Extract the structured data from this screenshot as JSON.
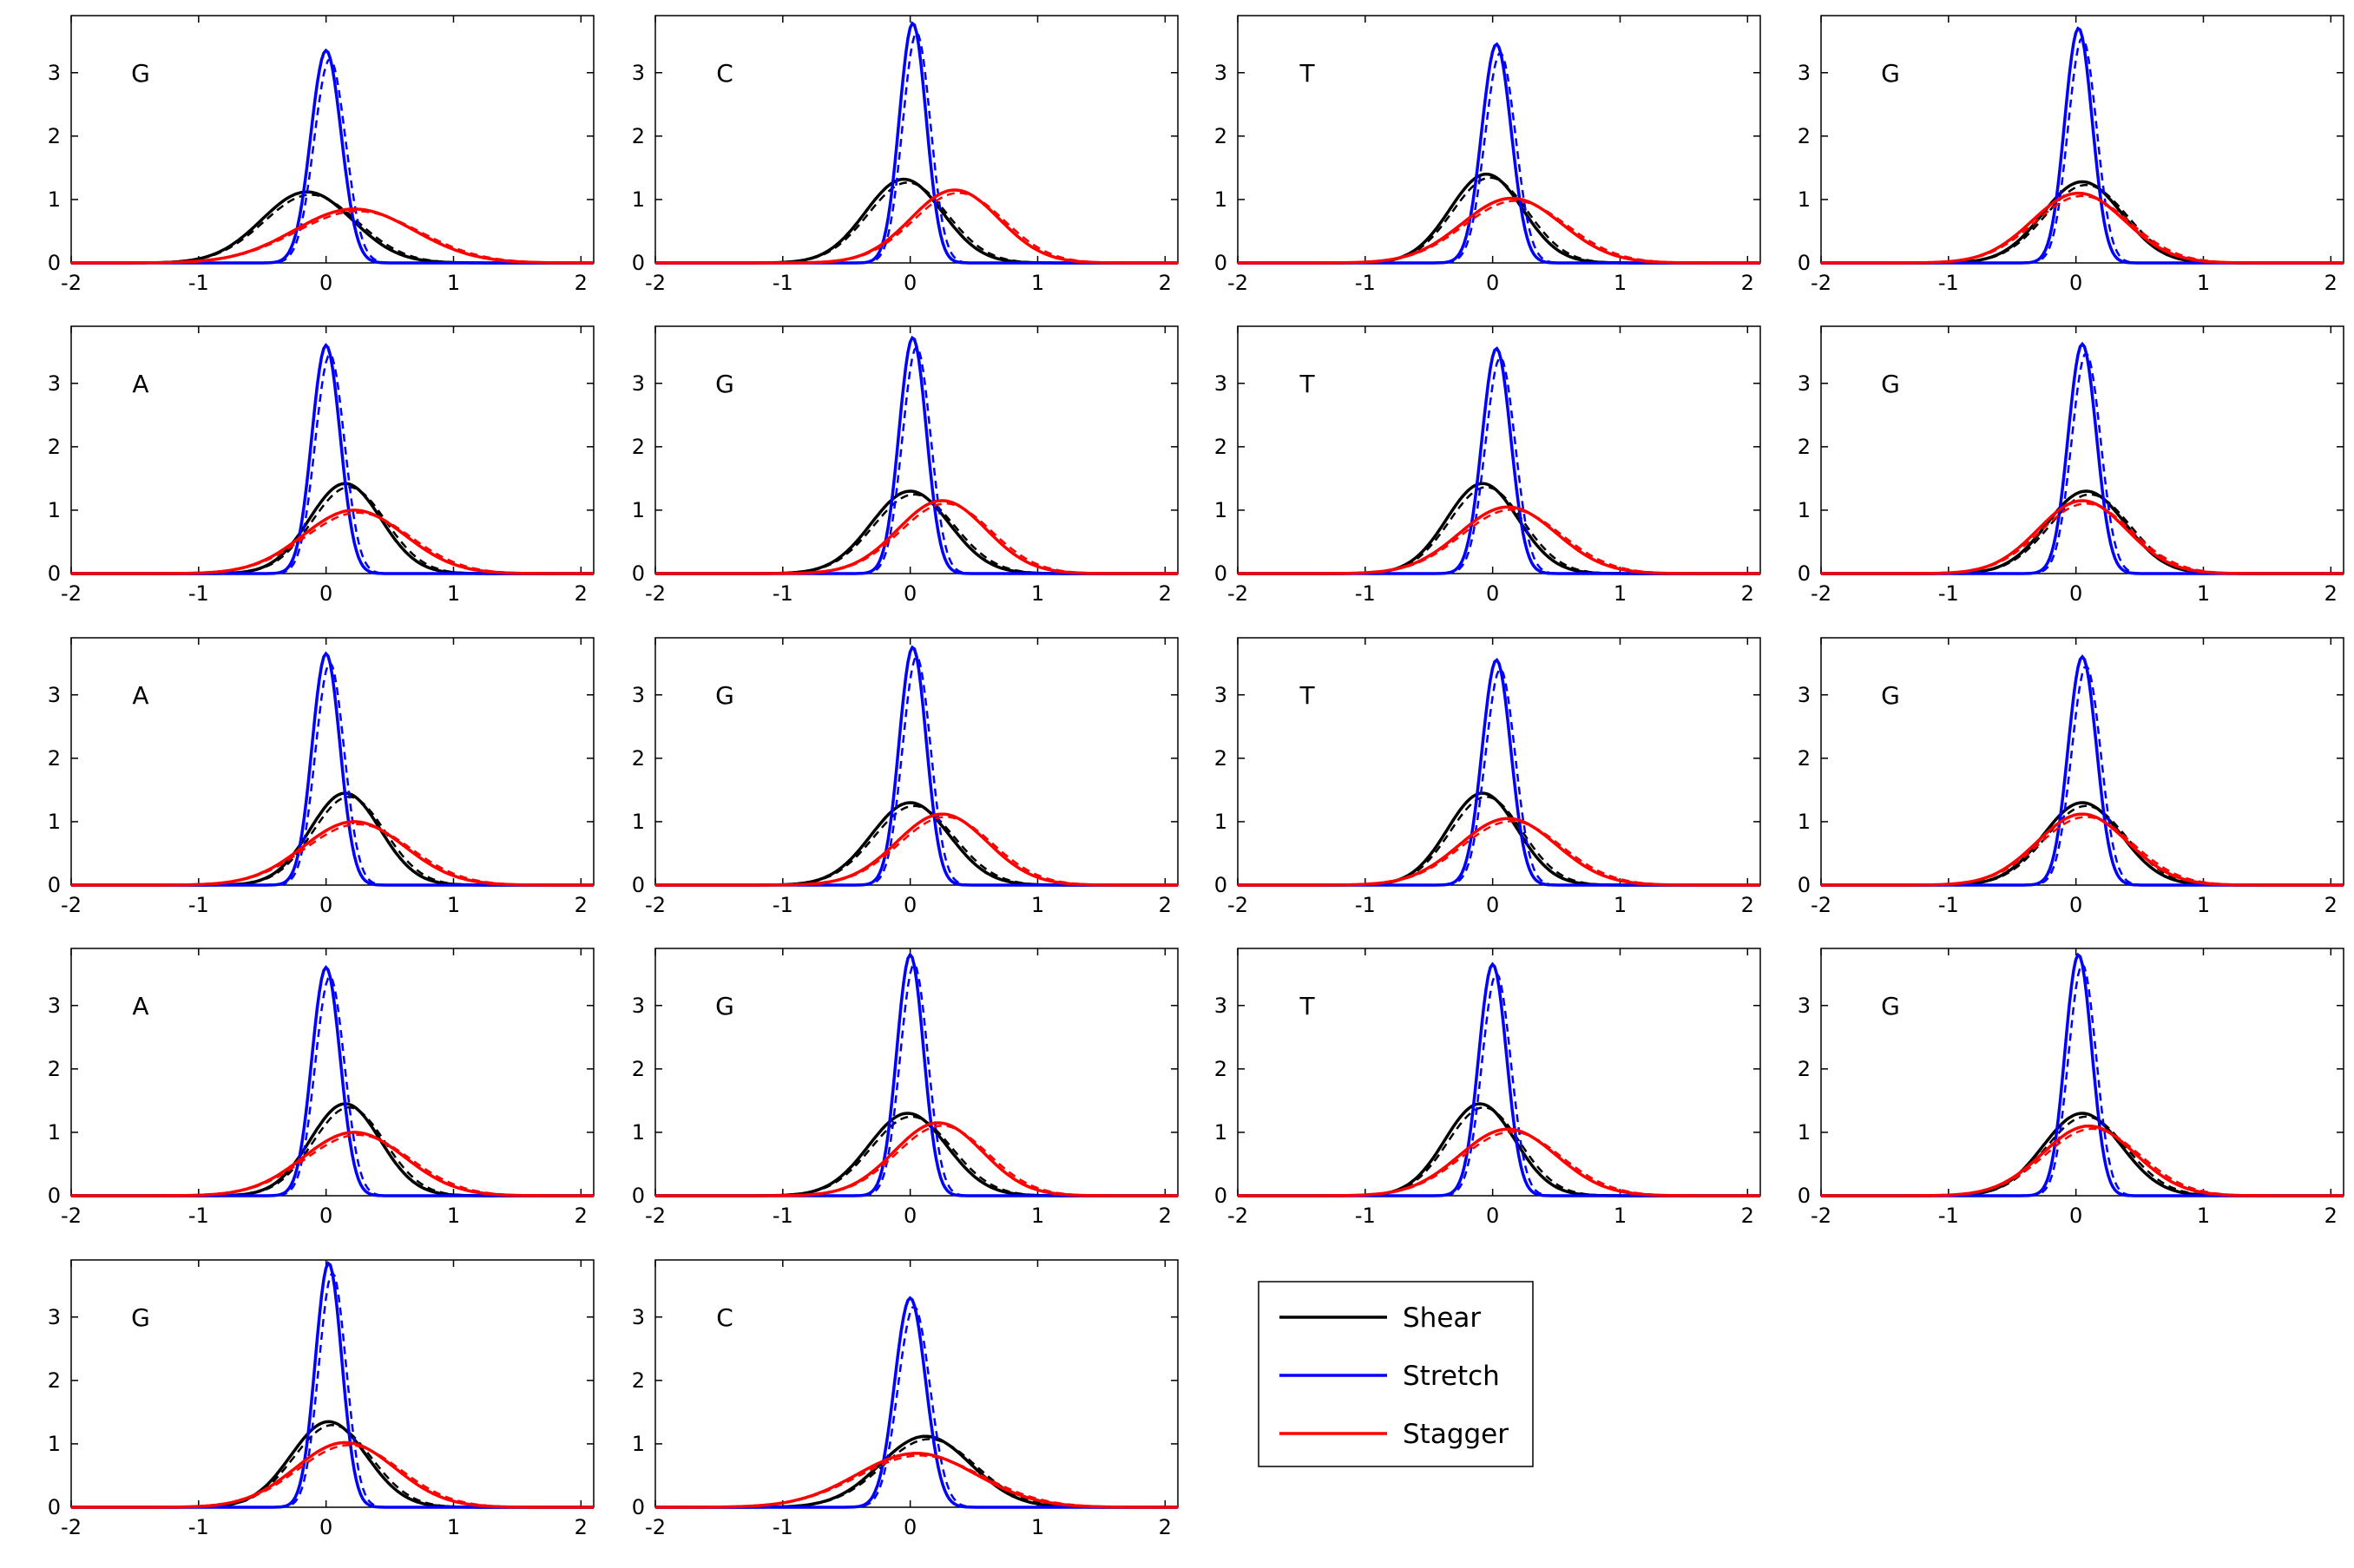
{
  "colors": {
    "shear": "#000000",
    "stretch": "#0000ff",
    "stagger": "#ff0000"
  },
  "legend": {
    "entries": [
      "Shear",
      "Stretch",
      "Stagger"
    ]
  },
  "axes_common": {
    "xlim": [
      -2,
      2.1
    ],
    "ylim": [
      0,
      3.9
    ],
    "xticks": [
      -2,
      -1,
      0,
      1,
      2
    ],
    "yticks": [
      0,
      1,
      2,
      3
    ]
  },
  "chart_data": [
    {
      "type": "line",
      "label": "G",
      "series": [
        {
          "name": "Shear",
          "mean": -0.15,
          "peak": 1.12
        },
        {
          "name": "Stretch",
          "mean": 0.0,
          "peak": 3.35
        },
        {
          "name": "Stagger",
          "mean": 0.22,
          "peak": 0.85
        }
      ]
    },
    {
      "type": "line",
      "label": "C",
      "series": [
        {
          "name": "Shear",
          "mean": -0.05,
          "peak": 1.32
        },
        {
          "name": "Stretch",
          "mean": 0.02,
          "peak": 3.78
        },
        {
          "name": "Stagger",
          "mean": 0.35,
          "peak": 1.15
        }
      ]
    },
    {
      "type": "line",
      "label": "T",
      "series": [
        {
          "name": "Shear",
          "mean": -0.05,
          "peak": 1.4
        },
        {
          "name": "Stretch",
          "mean": 0.03,
          "peak": 3.45
        },
        {
          "name": "Stagger",
          "mean": 0.15,
          "peak": 1.02
        }
      ]
    },
    {
      "type": "line",
      "label": "G",
      "series": [
        {
          "name": "Shear",
          "mean": 0.05,
          "peak": 1.28
        },
        {
          "name": "Stretch",
          "mean": 0.02,
          "peak": 3.7
        },
        {
          "name": "Stagger",
          "mean": 0.02,
          "peak": 1.1
        }
      ]
    },
    {
      "type": "line",
      "label": "A",
      "series": [
        {
          "name": "Shear",
          "mean": 0.15,
          "peak": 1.42
        },
        {
          "name": "Stretch",
          "mean": 0.0,
          "peak": 3.6
        },
        {
          "name": "Stagger",
          "mean": 0.22,
          "peak": 1.0
        }
      ]
    },
    {
      "type": "line",
      "label": "G",
      "series": [
        {
          "name": "Shear",
          "mean": 0.0,
          "peak": 1.3
        },
        {
          "name": "Stretch",
          "mean": 0.02,
          "peak": 3.72
        },
        {
          "name": "Stagger",
          "mean": 0.25,
          "peak": 1.15
        }
      ]
    },
    {
      "type": "line",
      "label": "T",
      "series": [
        {
          "name": "Shear",
          "mean": -0.08,
          "peak": 1.42
        },
        {
          "name": "Stretch",
          "mean": 0.03,
          "peak": 3.55
        },
        {
          "name": "Stagger",
          "mean": 0.12,
          "peak": 1.05
        }
      ]
    },
    {
      "type": "line",
      "label": "G",
      "series": [
        {
          "name": "Shear",
          "mean": 0.08,
          "peak": 1.3
        },
        {
          "name": "Stretch",
          "mean": 0.05,
          "peak": 3.62
        },
        {
          "name": "Stagger",
          "mean": 0.05,
          "peak": 1.15
        }
      ]
    },
    {
      "type": "line",
      "label": "A",
      "series": [
        {
          "name": "Shear",
          "mean": 0.15,
          "peak": 1.45
        },
        {
          "name": "Stretch",
          "mean": 0.0,
          "peak": 3.65
        },
        {
          "name": "Stagger",
          "mean": 0.22,
          "peak": 1.0
        }
      ]
    },
    {
      "type": "line",
      "label": "G",
      "series": [
        {
          "name": "Shear",
          "mean": 0.0,
          "peak": 1.3
        },
        {
          "name": "Stretch",
          "mean": 0.02,
          "peak": 3.75
        },
        {
          "name": "Stagger",
          "mean": 0.25,
          "peak": 1.12
        }
      ]
    },
    {
      "type": "line",
      "label": "T",
      "series": [
        {
          "name": "Shear",
          "mean": -0.08,
          "peak": 1.45
        },
        {
          "name": "Stretch",
          "mean": 0.03,
          "peak": 3.55
        },
        {
          "name": "Stagger",
          "mean": 0.12,
          "peak": 1.05
        }
      ]
    },
    {
      "type": "line",
      "label": "G",
      "series": [
        {
          "name": "Shear",
          "mean": 0.05,
          "peak": 1.3
        },
        {
          "name": "Stretch",
          "mean": 0.05,
          "peak": 3.6
        },
        {
          "name": "Stagger",
          "mean": 0.05,
          "peak": 1.12
        }
      ]
    },
    {
      "type": "line",
      "label": "A",
      "series": [
        {
          "name": "Shear",
          "mean": 0.15,
          "peak": 1.45
        },
        {
          "name": "Stretch",
          "mean": 0.0,
          "peak": 3.6
        },
        {
          "name": "Stagger",
          "mean": 0.22,
          "peak": 1.0
        }
      ]
    },
    {
      "type": "line",
      "label": "G",
      "series": [
        {
          "name": "Shear",
          "mean": -0.02,
          "peak": 1.3
        },
        {
          "name": "Stretch",
          "mean": 0.0,
          "peak": 3.8
        },
        {
          "name": "Stagger",
          "mean": 0.22,
          "peak": 1.15
        }
      ]
    },
    {
      "type": "line",
      "label": "T",
      "series": [
        {
          "name": "Shear",
          "mean": -0.1,
          "peak": 1.45
        },
        {
          "name": "Stretch",
          "mean": 0.0,
          "peak": 3.65
        },
        {
          "name": "Stagger",
          "mean": 0.12,
          "peak": 1.05
        }
      ]
    },
    {
      "type": "line",
      "label": "G",
      "series": [
        {
          "name": "Shear",
          "mean": 0.05,
          "peak": 1.3
        },
        {
          "name": "Stretch",
          "mean": 0.02,
          "peak": 3.8
        },
        {
          "name": "Stagger",
          "mean": 0.1,
          "peak": 1.1
        }
      ]
    },
    {
      "type": "line",
      "label": "G",
      "series": [
        {
          "name": "Shear",
          "mean": 0.02,
          "peak": 1.35
        },
        {
          "name": "Stretch",
          "mean": 0.02,
          "peak": 3.85
        },
        {
          "name": "Stagger",
          "mean": 0.15,
          "peak": 1.02
        }
      ]
    },
    {
      "type": "line",
      "label": "C",
      "series": [
        {
          "name": "Shear",
          "mean": 0.12,
          "peak": 1.12
        },
        {
          "name": "Stretch",
          "mean": 0.0,
          "peak": 3.3
        },
        {
          "name": "Stagger",
          "mean": 0.05,
          "peak": 0.85
        }
      ]
    }
  ]
}
